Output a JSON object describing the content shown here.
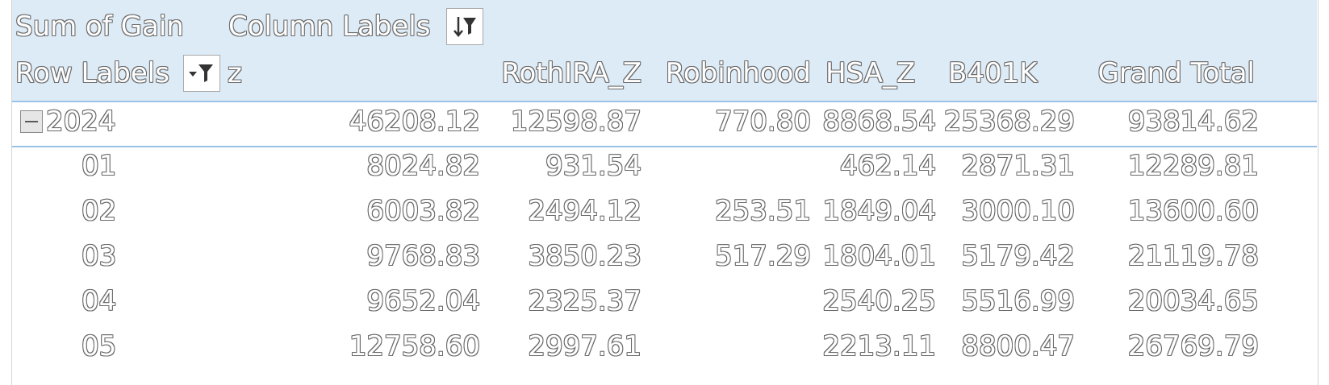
{
  "pivot": {
    "value_field": "Sum of Gain",
    "column_labels": "Column Labels",
    "row_labels": "Row Labels",
    "columns": [
      "z",
      "RothIRA_Z",
      "Robinhood",
      "HSA_Z",
      "B401K",
      "Grand Total"
    ],
    "year_row": {
      "label": "2024",
      "values": [
        "46208.12",
        "12598.87",
        "770.80",
        "8868.54",
        "25368.29",
        "93814.62"
      ]
    },
    "rows": [
      {
        "label": "01",
        "values": [
          "8024.82",
          "931.54",
          "",
          "462.14",
          "2871.31",
          "12289.81"
        ]
      },
      {
        "label": "02",
        "values": [
          "6003.82",
          "2494.12",
          "253.51",
          "1849.04",
          "3000.10",
          "13600.60"
        ]
      },
      {
        "label": "03",
        "values": [
          "9768.83",
          "3850.23",
          "517.29",
          "1804.01",
          "5179.42",
          "21119.78"
        ]
      },
      {
        "label": "04",
        "values": [
          "9652.04",
          "2325.37",
          "",
          "2540.25",
          "5516.99",
          "20034.65"
        ]
      },
      {
        "label": "05",
        "values": [
          "12758.60",
          "2997.61",
          "",
          "2213.11",
          "8800.47",
          "26769.79"
        ]
      }
    ]
  },
  "icons": {
    "column_filter": "sort-filter-icon",
    "row_filter": "dropdown-filter-icon",
    "collapse": "collapse-minus-icon"
  },
  "colors": {
    "header_background": "#ddebf7",
    "separator": "#9bc2e6",
    "text_outline": "#6a6a6a"
  }
}
